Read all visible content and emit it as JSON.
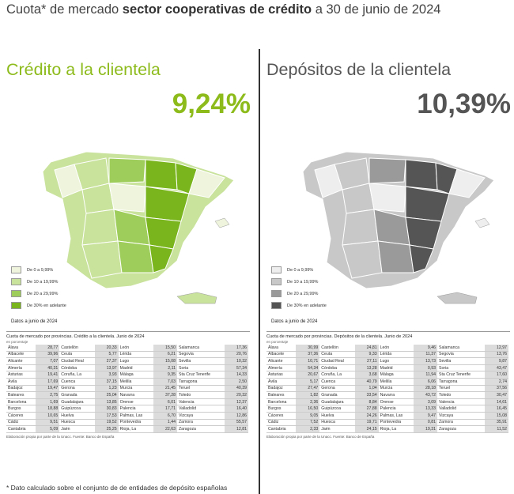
{
  "title": {
    "prefix": "Cuota* de mercado ",
    "bold": "sector cooperativas de crédito",
    "suffix": " a 30 de junio de 2024"
  },
  "panels": [
    {
      "heading": "Crédito a la clientela",
      "total": "9,24%",
      "legend": [
        "De 0 a 9,99%",
        "De 10 a 19,99%",
        "De 20 a 29,99%",
        "De 30% en adelante"
      ],
      "date_note": "Datos a junio de 2024",
      "table": {
        "title": "Cuota de mercado por provincias. Crédito a la clientela. Junio de 2024",
        "unit": "en porcentaje",
        "rows": [
          [
            "Álava",
            "28,77",
            "Castellón",
            "20,33",
            "León",
            "15,50",
            "Salamanca",
            "17,36"
          ],
          [
            "Albacete",
            "39,96",
            "Ceuta",
            "5,77",
            "Lérida",
            "6,21",
            "Segovia",
            "20,76"
          ],
          [
            "Alicante",
            "7,07",
            "Ciudad Real",
            "27,37",
            "Lugo",
            "15,08",
            "Sevilla",
            "10,32"
          ],
          [
            "Almería",
            "40,31",
            "Córdoba",
            "13,97",
            "Madrid",
            "2,11",
            "Soria",
            "57,34"
          ],
          [
            "Asturias",
            "19,41",
            "Coruña, La",
            "3,93",
            "Málaga",
            "9,35",
            "Sta Cruz Tenerife",
            "14,33"
          ],
          [
            "Ávila",
            "17,69",
            "Cuenca",
            "37,15",
            "Melilla",
            "7,03",
            "Tarragona",
            "2,50"
          ],
          [
            "Badajoz",
            "19,47",
            "Gerona",
            "1,23",
            "Murcia",
            "21,45",
            "Teruel",
            "40,39"
          ],
          [
            "Baleares",
            "2,75",
            "Granada",
            "25,04",
            "Navarra",
            "37,28",
            "Toledo",
            "20,32"
          ],
          [
            "Barcelona",
            "1,69",
            "Guadalajara",
            "13,85",
            "Orense",
            "6,01",
            "Valencia",
            "12,37"
          ],
          [
            "Burgos",
            "18,88",
            "Guipúzcoa",
            "30,83",
            "Palencia",
            "17,71",
            "Valladolid",
            "16,40"
          ],
          [
            "Cáceres",
            "10,65",
            "Huelva",
            "17,53",
            "Palmas, Las",
            "6,70",
            "Vizcaya",
            "12,86"
          ],
          [
            "Cádiz",
            "9,51",
            "Huesca",
            "19,52",
            "Pontevedra",
            "1,44",
            "Zamora",
            "55,57"
          ],
          [
            "Cantabria",
            "5,09",
            "Jaén",
            "25,25",
            "Rioja, La",
            "22,63",
            "Zaragoza",
            "12,81"
          ]
        ],
        "source": "Elaboración propia por parte de la Unacc. Fuente: Banco de España"
      }
    },
    {
      "heading": "Depósitos de la clientela",
      "total": "10,39%",
      "legend": [
        "De 0 a 9,99%",
        "De 10 a 19,99%",
        "De 20 a 29,99%",
        "De 30% en adelante"
      ],
      "date_note": "Datos a junio de 2024",
      "table": {
        "title": "Cuota de mercado por provincias. Depósitos de la clientela. Junio de 2024",
        "unit": "en porcentaje",
        "rows": [
          [
            "Álava",
            "30,99",
            "Castellón",
            "24,81",
            "León",
            "9,46",
            "Salamanca",
            "12,97"
          ],
          [
            "Albacete",
            "37,36",
            "Ceuta",
            "9,33",
            "Lérida",
            "11,37",
            "Segovia",
            "13,76"
          ],
          [
            "Alicante",
            "10,71",
            "Ciudad Real",
            "27,11",
            "Lugo",
            "13,73",
            "Sevilla",
            "9,87"
          ],
          [
            "Almería",
            "54,34",
            "Córdoba",
            "13,28",
            "Madrid",
            "0,93",
            "Soria",
            "43,47"
          ],
          [
            "Asturias",
            "20,67",
            "Coruña, La",
            "3,68",
            "Málaga",
            "11,94",
            "Sta Cruz Tenerife",
            "17,60"
          ],
          [
            "Ávila",
            "5,17",
            "Cuenca",
            "40,79",
            "Melilla",
            "6,06",
            "Tarragona",
            "2,74"
          ],
          [
            "Badajoz",
            "27,47",
            "Gerona",
            "1,04",
            "Murcia",
            "28,18",
            "Teruel",
            "37,56"
          ],
          [
            "Baleares",
            "1,82",
            "Granada",
            "33,54",
            "Navarra",
            "43,72",
            "Toledo",
            "30,47"
          ],
          [
            "Barcelona",
            "2,36",
            "Guadalajara",
            "8,84",
            "Orense",
            "3,09",
            "Valencia",
            "14,61"
          ],
          [
            "Burgos",
            "16,50",
            "Guipúzcoa",
            "27,88",
            "Palencia",
            "13,33",
            "Valladolid",
            "16,45"
          ],
          [
            "Cáceres",
            "9,05",
            "Huelva",
            "24,26",
            "Palmas, Las",
            "9,47",
            "Vizcaya",
            "15,08"
          ],
          [
            "Cádiz",
            "7,52",
            "Huesca",
            "19,71",
            "Pontevedra",
            "0,81",
            "Zamora",
            "35,91"
          ],
          [
            "Cantabria",
            "2,33",
            "Jaén",
            "24,15",
            "Rioja, La",
            "19,31",
            "Zaragoza",
            "11,52"
          ]
        ],
        "source": "Elaboración propia por parte de la Unacc. Fuente: Banco de España"
      }
    }
  ],
  "footnote": "* Dato calculado sobre el conjunto de de entidades de depósito españolas"
}
